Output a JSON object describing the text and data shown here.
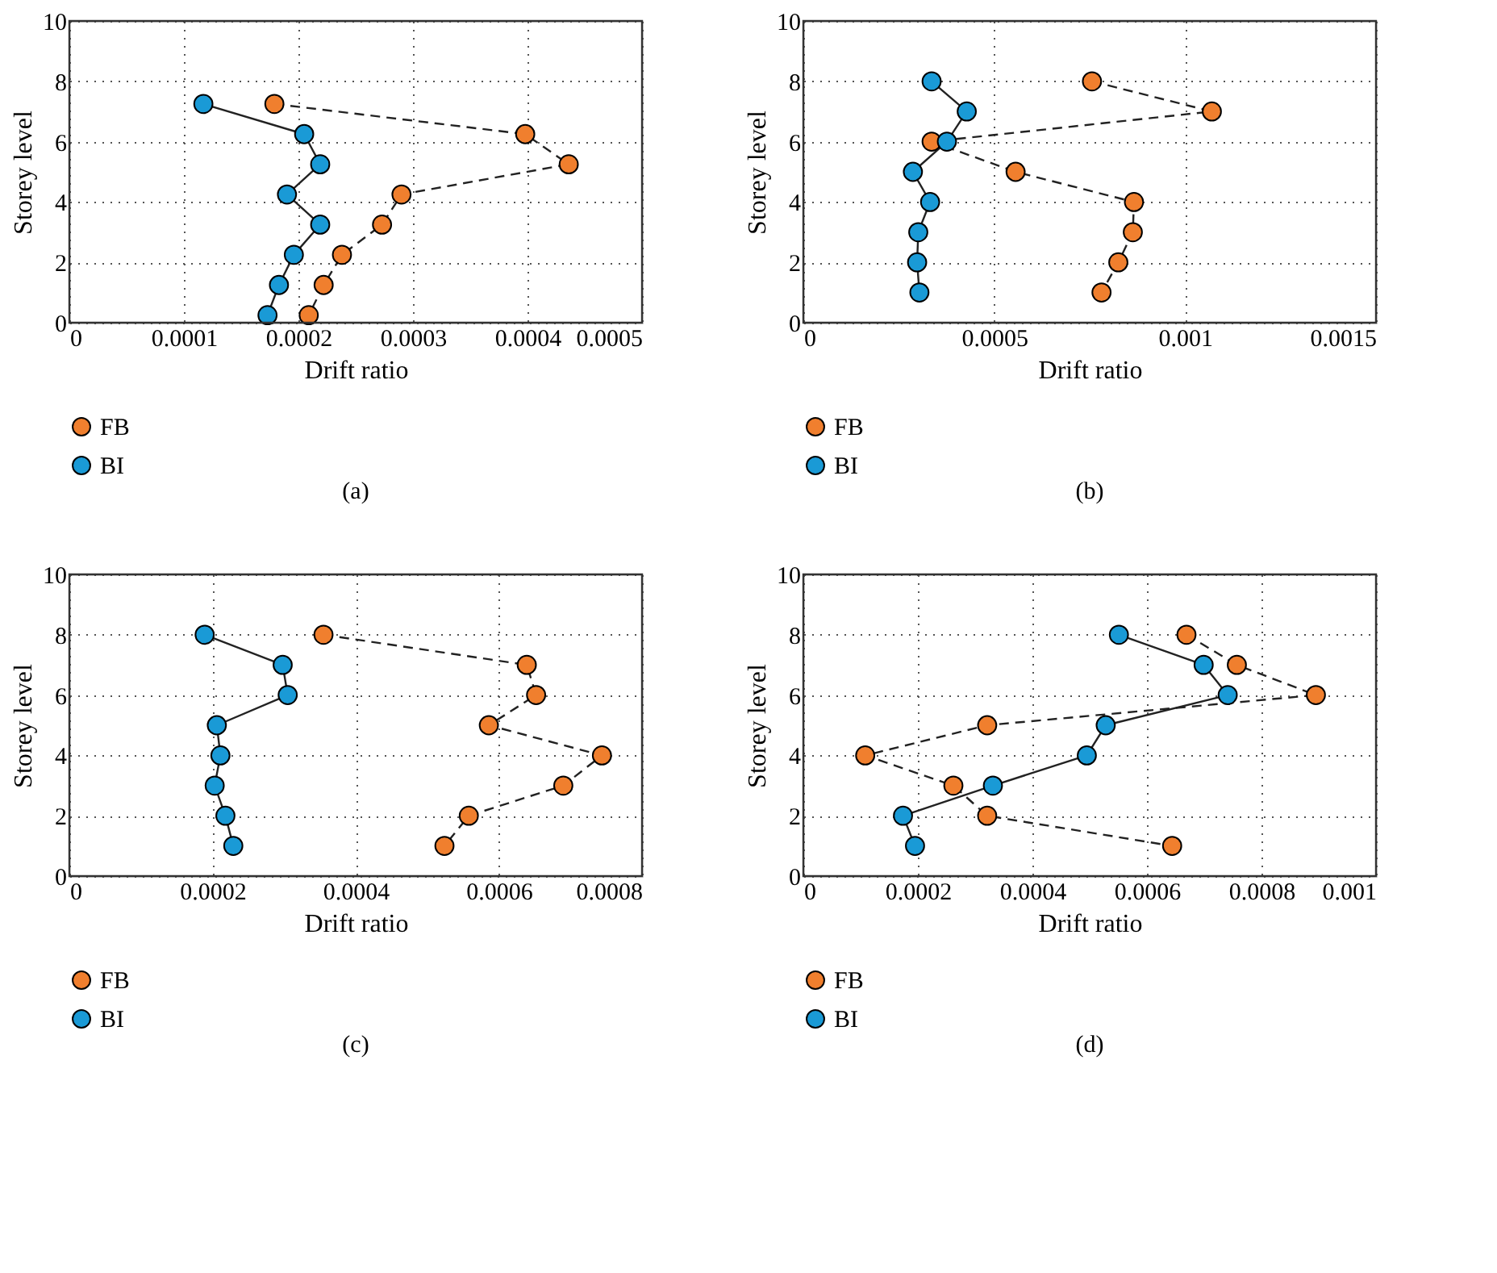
{
  "chart_data": [
    {
      "type": "line",
      "xlabel": "Drift ratio",
      "ylabel": "Storey level",
      "xlim": [
        0,
        0.0005
      ],
      "xticks": [
        0,
        0.0001,
        0.0002,
        0.0003,
        0.0004,
        0.0005
      ],
      "ylim": [
        0,
        10
      ],
      "yticks": [
        0,
        2,
        4,
        6,
        8,
        10
      ],
      "grid": true,
      "legend": "bottom",
      "marker": "circle",
      "annotations": [
        "(a)"
      ],
      "series": [
        {
          "name": "FB",
          "color": "#f07f2e",
          "line_style": "dashed",
          "x": [
            0.000179,
            0.000398,
            0.000436,
            0.00029,
            0.000273,
            0.000238,
            0.000222,
            0.000209
          ],
          "values": [
            7.25,
            6.25,
            5.25,
            4.25,
            3.25,
            2.25,
            1.25,
            0.25
          ]
        },
        {
          "name": "BI",
          "color": "#1a9ad6",
          "line_style": "solid",
          "x": [
            0.000117,
            0.000205,
            0.000219,
            0.00019,
            0.000219,
            0.000196,
            0.000183,
            0.000173
          ],
          "values": [
            7.25,
            6.25,
            5.25,
            4.25,
            3.25,
            2.25,
            1.25,
            0.25
          ]
        }
      ]
    },
    {
      "type": "line",
      "xlabel": "Drift ratio",
      "ylabel": "Storey level",
      "xlim": [
        0,
        0.0015
      ],
      "xticks": [
        0,
        0.0005,
        0.001,
        0.0015
      ],
      "ylim": [
        0,
        10
      ],
      "yticks": [
        0,
        2,
        4,
        6,
        8,
        10
      ],
      "grid": true,
      "legend": "bottom",
      "marker": "circle",
      "annotations": [
        "(b)"
      ],
      "series": [
        {
          "name": "FB",
          "color": "#f07f2e",
          "line_style": "dashed",
          "x": [
            0.000756,
            0.00107,
            0.000336,
            0.000556,
            0.000866,
            0.000863,
            0.000825,
            0.000781
          ],
          "values": [
            8,
            7,
            6,
            5,
            4,
            3,
            2,
            1
          ]
        },
        {
          "name": "BI",
          "color": "#1a9ad6",
          "line_style": "solid",
          "x": [
            0.000336,
            0.000428,
            0.000376,
            0.000287,
            0.000332,
            0.000301,
            0.000298,
            0.000304
          ],
          "values": [
            8,
            7,
            6,
            5,
            4,
            3,
            2,
            1
          ]
        }
      ]
    },
    {
      "type": "line",
      "xlabel": "Drift ratio",
      "ylabel": "Storey level",
      "xlim": [
        0,
        0.0008
      ],
      "xticks": [
        0,
        0.0002,
        0.0004,
        0.0006,
        0.0008
      ],
      "ylim": [
        0,
        10
      ],
      "yticks": [
        0,
        2,
        4,
        6,
        8,
        10
      ],
      "grid": true,
      "legend": "bottom",
      "marker": "circle",
      "annotations": [
        "(c)"
      ],
      "series": [
        {
          "name": "FB",
          "color": "#f07f2e",
          "line_style": "dashed",
          "x": [
            0.000355,
            0.000639,
            0.000652,
            0.000586,
            0.000744,
            0.00069,
            0.000558,
            0.000524
          ],
          "values": [
            8,
            7,
            6,
            5,
            4,
            3,
            2,
            1
          ]
        },
        {
          "name": "BI",
          "color": "#1a9ad6",
          "line_style": "solid",
          "x": [
            0.000189,
            0.000298,
            0.000305,
            0.000206,
            0.000211,
            0.000203,
            0.000218,
            0.000229
          ],
          "values": [
            8,
            7,
            6,
            5,
            4,
            3,
            2,
            1
          ]
        }
      ]
    },
    {
      "type": "line",
      "xlabel": "Drift ratio",
      "ylabel": "Storey level",
      "xlim": [
        0,
        0.001
      ],
      "xticks": [
        0,
        0.0002,
        0.0004,
        0.0006,
        0.0008,
        0.001
      ],
      "ylim": [
        0,
        10
      ],
      "yticks": [
        0,
        2,
        4,
        6,
        8,
        10
      ],
      "grid": true,
      "legend": "bottom",
      "marker": "circle",
      "annotations": [
        "(d)"
      ],
      "series": [
        {
          "name": "FB",
          "color": "#f07f2e",
          "line_style": "dashed",
          "x": [
            0.000669,
            0.000757,
            0.000895,
            0.000321,
            0.000108,
            0.000262,
            0.000321,
            0.000644
          ],
          "values": [
            8,
            7,
            6,
            5,
            4,
            3,
            2,
            1
          ]
        },
        {
          "name": "BI",
          "color": "#1a9ad6",
          "line_style": "solid",
          "x": [
            0.000551,
            0.000699,
            0.000741,
            0.000528,
            0.000495,
            0.000331,
            0.000174,
            0.000195
          ],
          "values": [
            8,
            7,
            6,
            5,
            4,
            3,
            2,
            1
          ]
        }
      ]
    }
  ]
}
